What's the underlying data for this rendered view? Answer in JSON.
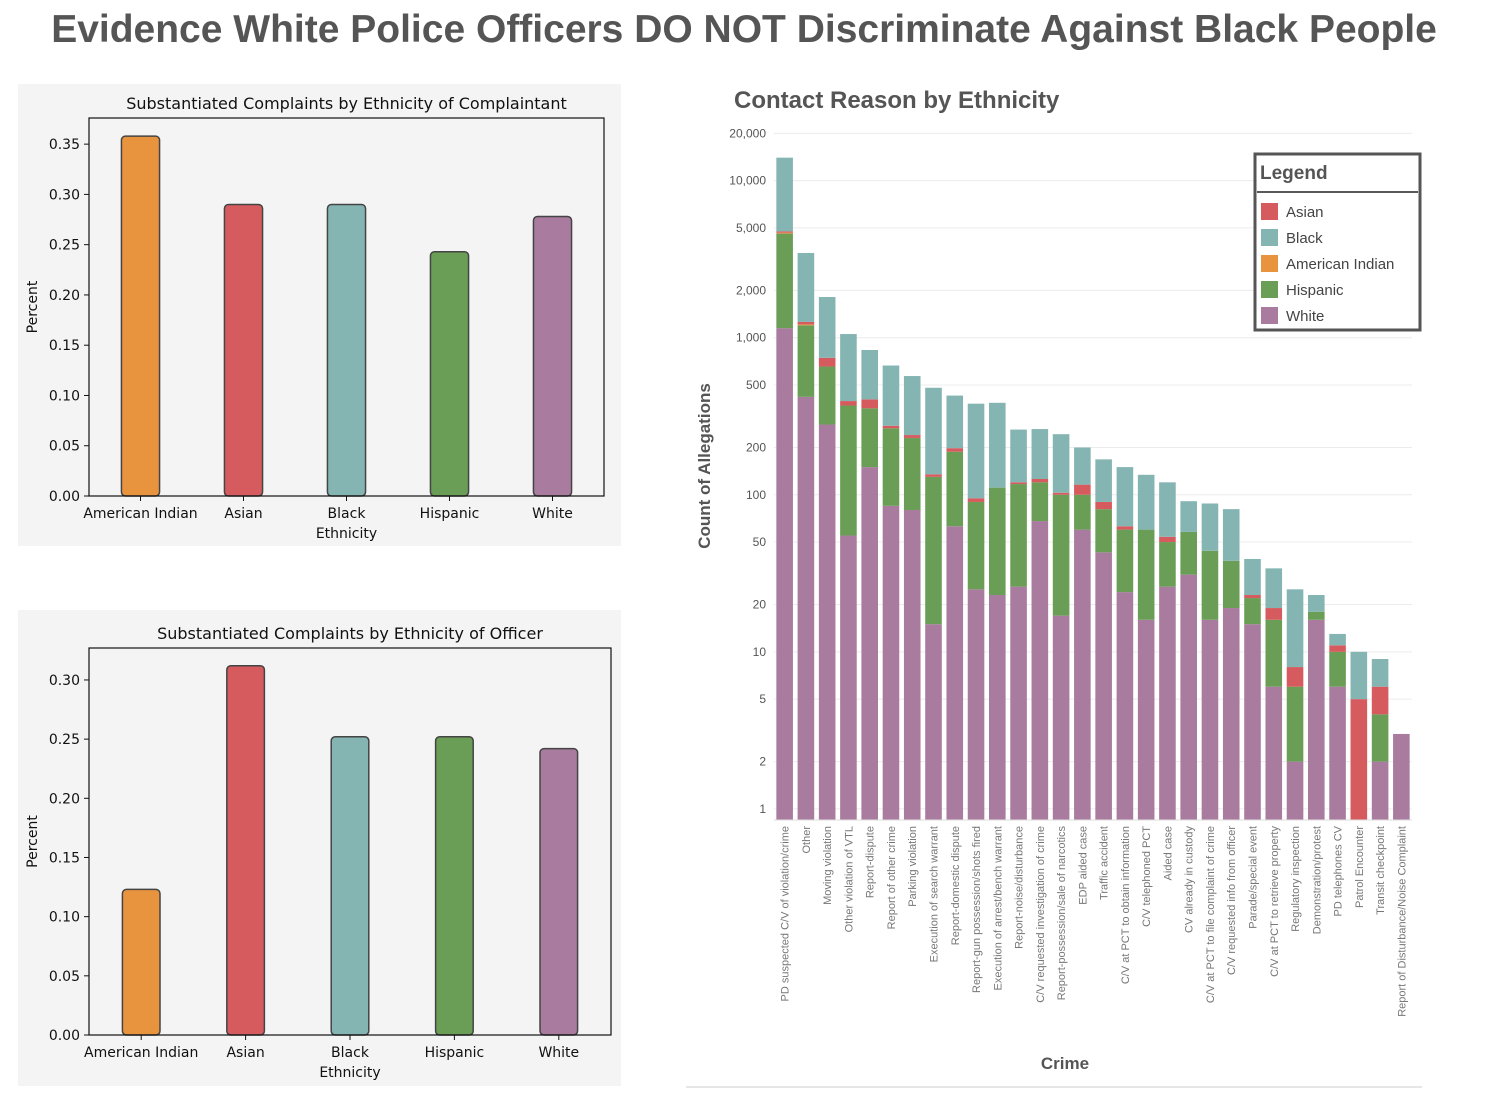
{
  "page": {
    "title": "Evidence White Police Officers DO NOT Discriminate Against Black People"
  },
  "chart_data": [
    {
      "type": "bar",
      "title": "Substantiated Complaints by Ethnicity of Complaintant",
      "xlabel": "Ethnicity",
      "ylabel": "Percent",
      "categories": [
        "American Indian",
        "Asian",
        "Black",
        "Hispanic",
        "White"
      ],
      "values": [
        0.358,
        0.29,
        0.29,
        0.243,
        0.278
      ],
      "colors": [
        "#e8943f",
        "#d65b5e",
        "#84b5b2",
        "#6a9e56",
        "#a87b9f"
      ],
      "ylim": [
        0,
        0.376
      ],
      "yticks": [
        0.0,
        0.05,
        0.1,
        0.15,
        0.2,
        0.25,
        0.3,
        0.35
      ],
      "ytick_labels": [
        "0.00",
        "0.05",
        "0.10",
        "0.15",
        "0.20",
        "0.25",
        "0.30",
        "0.35"
      ],
      "grid": false
    },
    {
      "type": "bar",
      "title": "Substantiated Complaints by Ethnicity of Officer",
      "xlabel": "Ethnicity",
      "ylabel": "Percent",
      "categories": [
        "American Indian",
        "Asian",
        "Black",
        "Hispanic",
        "White"
      ],
      "values": [
        0.123,
        0.312,
        0.252,
        0.252,
        0.242
      ],
      "colors": [
        "#e8943f",
        "#d65b5e",
        "#84b5b2",
        "#6a9e56",
        "#a87b9f"
      ],
      "ylim": [
        0,
        0.327
      ],
      "yticks": [
        0.0,
        0.05,
        0.1,
        0.15,
        0.2,
        0.25,
        0.3
      ],
      "ytick_labels": [
        "0.00",
        "0.05",
        "0.10",
        "0.15",
        "0.20",
        "0.25",
        "0.30"
      ],
      "grid": false
    },
    {
      "type": "bar",
      "stacked": true,
      "yscale": "log",
      "title": "Contact Reason by Ethnicity",
      "xlabel": "Crime",
      "ylabel": "Count of Allegations",
      "yticks": [
        1,
        2,
        5,
        10,
        20,
        50,
        100,
        200,
        500,
        1000,
        2000,
        5000,
        10000,
        20000
      ],
      "ytick_labels": [
        "1",
        "2",
        "5",
        "10",
        "20",
        "50",
        "100",
        "200",
        "500",
        "1,000",
        "2,000",
        "5,000",
        "10,000",
        "20,000"
      ],
      "ylim": [
        0.85,
        21000
      ],
      "grid": true,
      "legend": {
        "title": "Legend",
        "position": "top-right",
        "entries": [
          "Asian",
          "Black",
          "American Indian",
          "Hispanic",
          "White"
        ]
      },
      "series_colors": {
        "White": "#a87b9f",
        "Hispanic": "#6a9e56",
        "American Indian": "#e8943f",
        "Asian": "#d65b5e",
        "Black": "#84b5b2"
      },
      "stack_order": [
        "White",
        "Hispanic",
        "American Indian",
        "Asian",
        "Black"
      ],
      "categories": [
        "PD suspected C/V of violation/crime",
        "Other",
        "Moving violation",
        "Other violation of VTL",
        "Report-dispute",
        "Report of other crime",
        "Parking violation",
        "Execution of search warrant",
        "Report-domestic dispute",
        "Report-gun possession/shots fired",
        "Execution of arrest/bench warrant",
        "Report-noise/disturbance",
        "C/V requested investigation of crime",
        "Report-possession/sale of narcotics",
        "EDP aided case",
        "Traffic accident",
        "C/V at PCT to obtain information",
        "C/V telephoned PCT",
        "Aided case",
        "CV already in custody",
        "C/V at PCT to file complaint of crime",
        "C/V requested info from officer",
        "Parade/special event",
        "C/V at PCT to retrieve property",
        "Regulatory inspection",
        "Demonstration/protest",
        "PD telephones CV",
        "Patrol Encounter",
        "Transit checkpoint",
        "Report of Disturbance/Noise Complaint"
      ],
      "series": [
        {
          "name": "White",
          "values": [
            1150,
            420,
            280,
            55,
            150,
            85,
            80,
            15,
            63,
            25,
            23,
            26,
            68,
            17,
            60,
            43,
            24,
            16,
            26,
            31,
            16,
            19,
            15,
            6,
            2,
            16,
            6,
            0,
            2,
            3
          ]
        },
        {
          "name": "Hispanic",
          "values": [
            3450,
            780,
            375,
            315,
            205,
            180,
            150,
            115,
            125,
            65,
            88,
            91,
            52,
            83,
            40,
            38,
            36,
            44,
            24,
            27,
            28,
            19,
            7,
            10,
            4,
            2,
            4,
            0,
            2,
            0
          ]
        },
        {
          "name": "American Indian",
          "values": [
            60,
            15,
            0,
            0,
            0,
            0,
            0,
            0,
            0,
            0,
            0,
            0,
            0,
            0,
            0,
            0,
            0,
            0,
            0,
            0,
            0,
            0,
            0,
            0,
            0,
            0,
            0,
            0,
            0,
            0
          ]
        },
        {
          "name": "Asian",
          "values": [
            90,
            45,
            90,
            25,
            50,
            10,
            10,
            5,
            10,
            5,
            0,
            3,
            6,
            3,
            16,
            9,
            3,
            0,
            4,
            0,
            0,
            0,
            1,
            3,
            2,
            0,
            1,
            5,
            2,
            0
          ]
        },
        {
          "name": "Black",
          "values": [
            9250,
            2200,
            1070,
            660,
            430,
            390,
            330,
            345,
            230,
            285,
            274,
            140,
            136,
            140,
            84,
            78,
            87,
            74,
            66,
            33,
            44,
            43,
            16,
            15,
            17,
            5,
            2,
            5,
            3,
            0
          ]
        }
      ]
    }
  ]
}
